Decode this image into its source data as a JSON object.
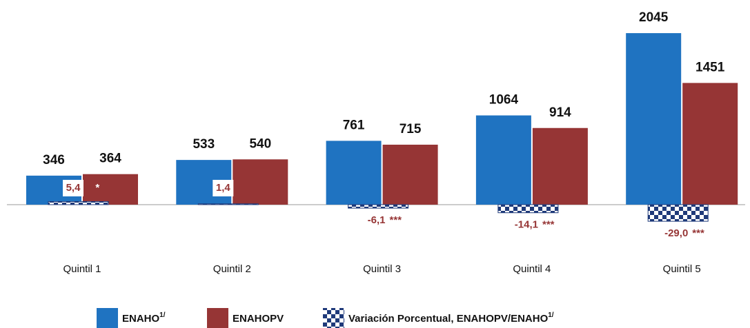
{
  "chart_data": {
    "type": "bar",
    "categories": [
      "Quintil 1",
      "Quintil 2",
      "Quintil 3",
      "Quintil 4",
      "Quintil 5"
    ],
    "series": [
      {
        "name": "ENAHO",
        "name_sup": "1/",
        "color": "#1f73c1",
        "values": [
          346,
          533,
          761,
          1064,
          2045
        ]
      },
      {
        "name": "ENAHOPV",
        "color": "#963535",
        "values": [
          364,
          540,
          715,
          914,
          1451
        ]
      },
      {
        "name": "Variación Porcentual, ENAHOPV/ENAHO",
        "name_sup": "1/",
        "color": "#1f3a7a",
        "axis": "y2",
        "values": [
          5.4,
          1.4,
          -6.1,
          -14.1,
          -29.0
        ],
        "value_labels": [
          "5,4",
          "1,4",
          "-6,1",
          "-14,1",
          "-29,0"
        ],
        "significance": [
          "*",
          null,
          "***",
          "***",
          "***"
        ]
      }
    ],
    "ylim": [
      0,
      2440
    ],
    "y2lim": [
      0,
      357
    ],
    "grid": false
  }
}
